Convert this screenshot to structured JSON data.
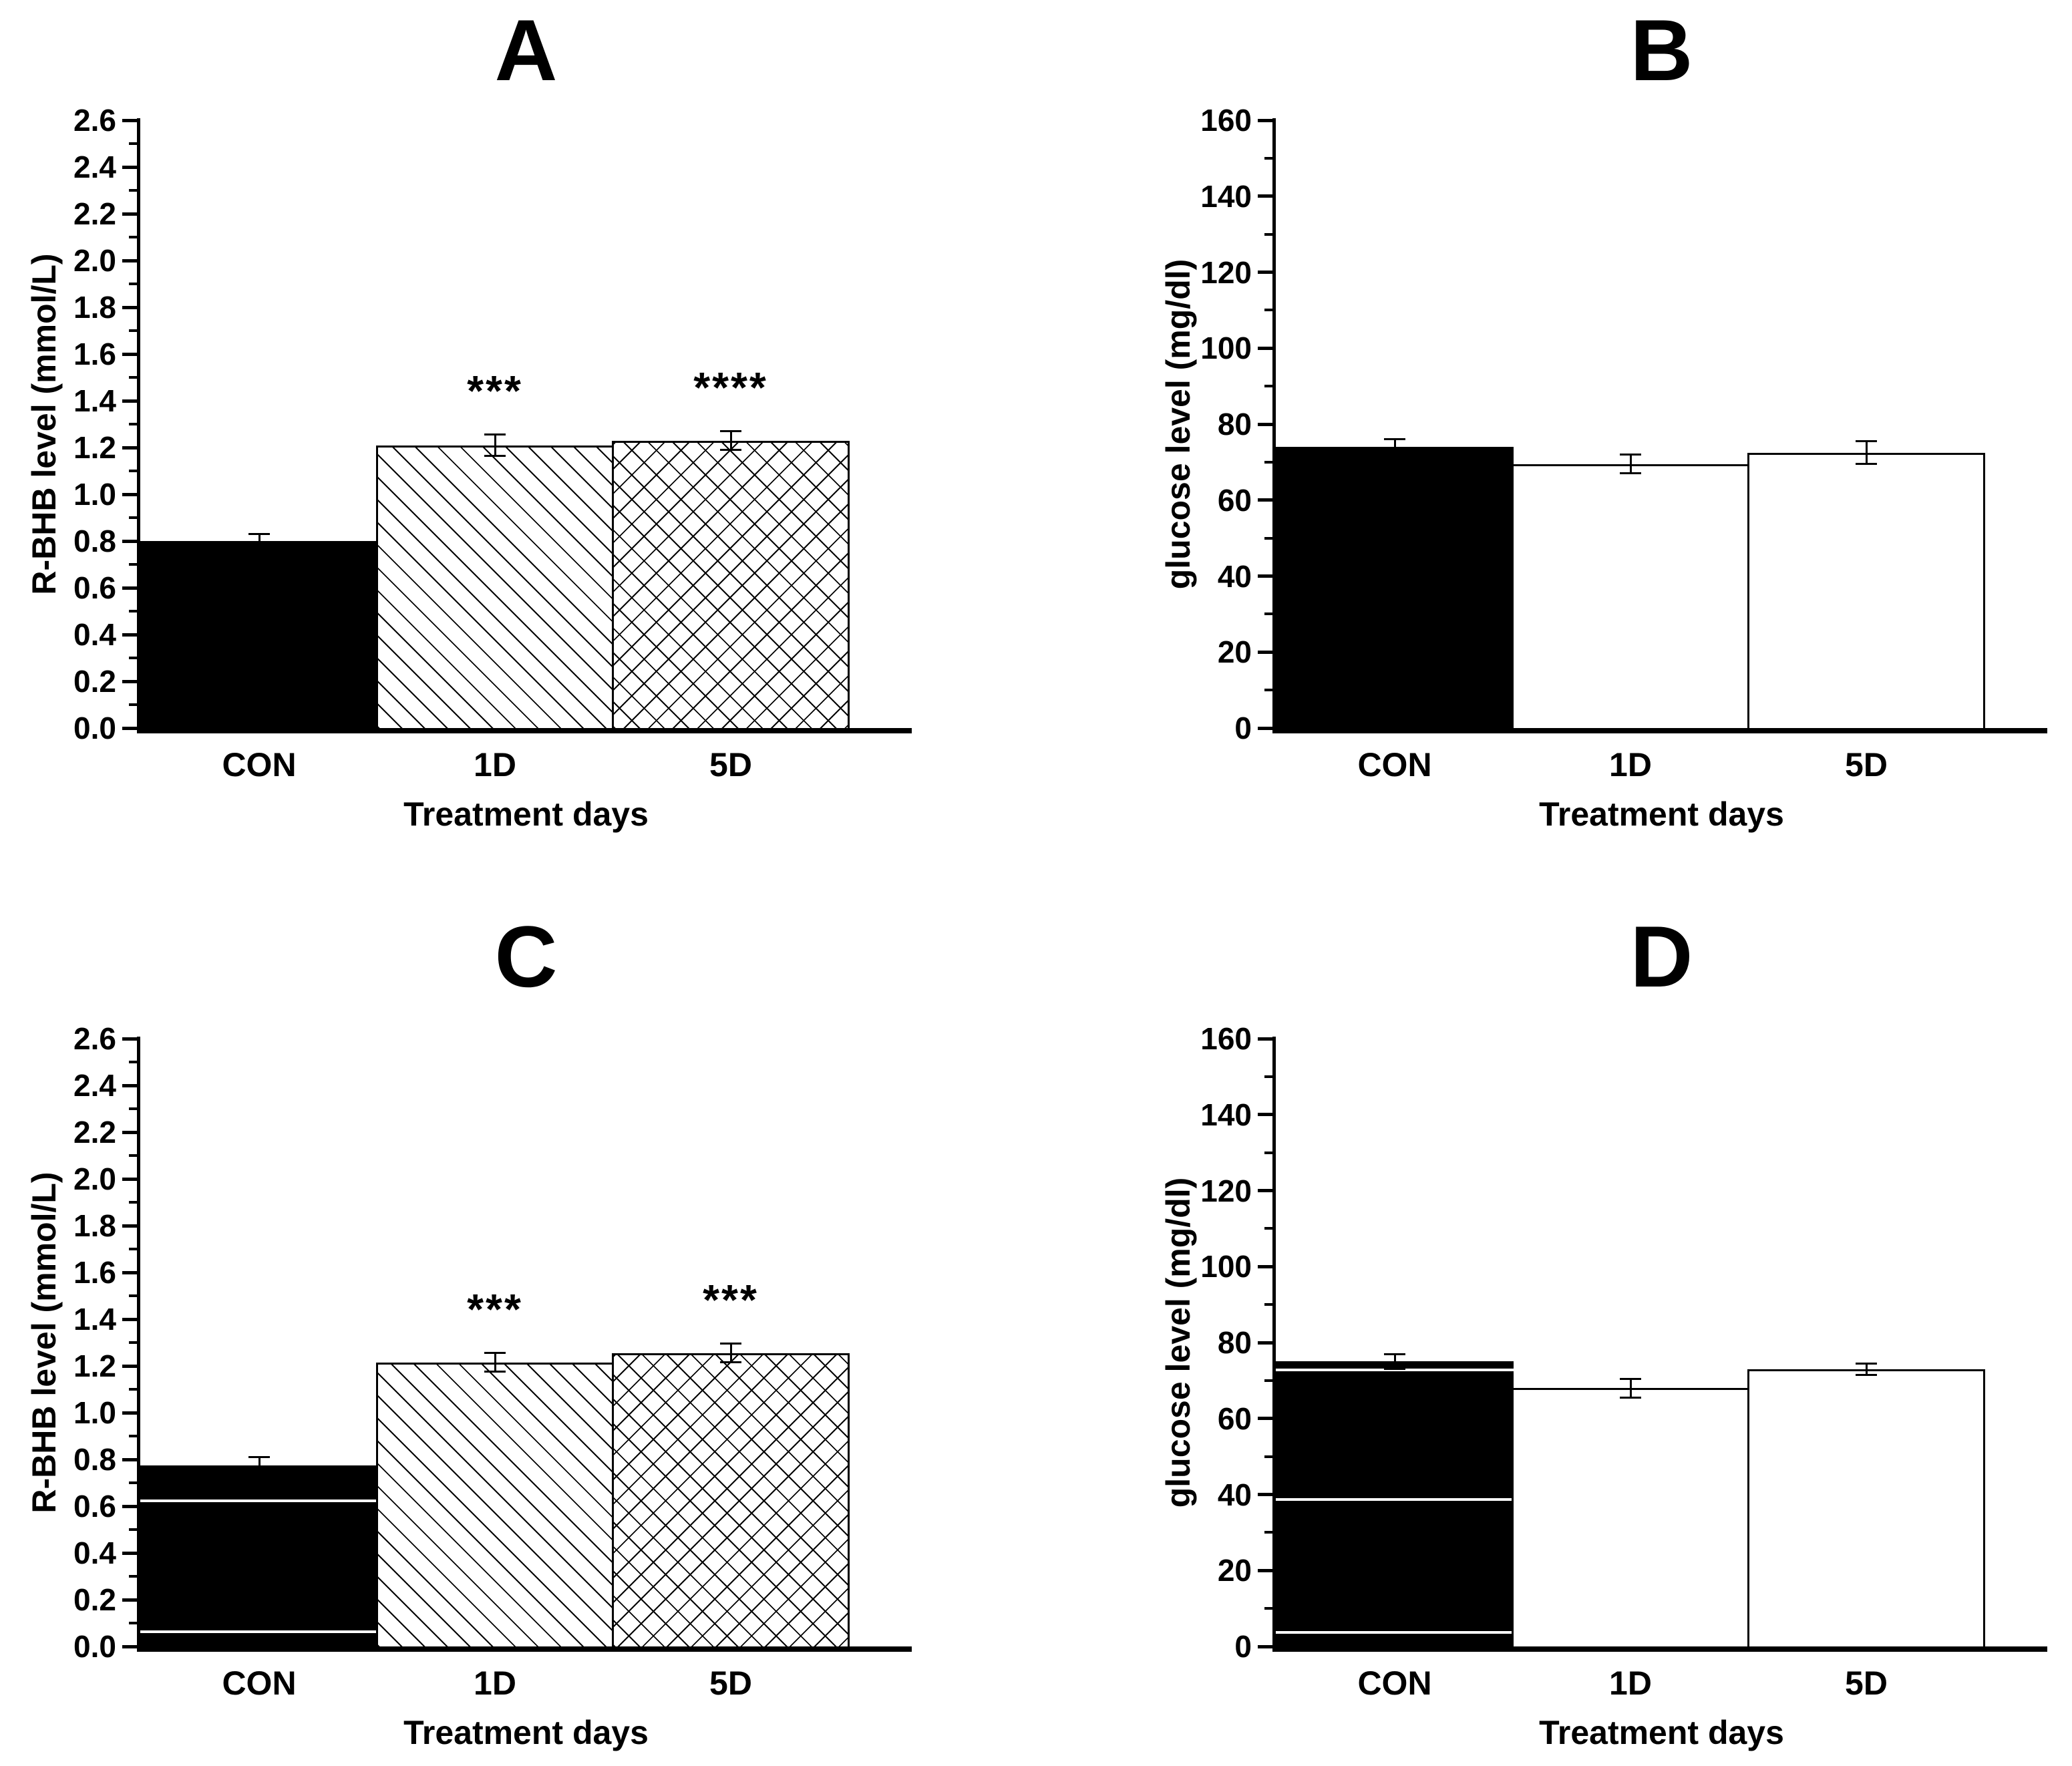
{
  "figure": {
    "background_color": "#ffffff",
    "ink_color": "#000000",
    "bar_fill_black": "#000000",
    "bar_fill_white": "#ffffff"
  },
  "chart_data": [
    {
      "type": "bar",
      "title": "A",
      "ylabel": "R-BHB level (mmol/L)",
      "xlabel": "Treatment days",
      "categories": [
        "CON",
        "1D",
        "5D"
      ],
      "values": [
        0.8,
        1.21,
        1.23
      ],
      "errors": [
        0.03,
        0.045,
        0.04
      ],
      "significance": [
        "",
        "***",
        "****"
      ],
      "bar_styles": [
        "solid-black",
        "diagonal-hatch",
        "cross-hatch"
      ],
      "white_line_artifacts": [
        [],
        [],
        []
      ],
      "ylim": [
        0,
        2.6
      ],
      "ytick_step": 0.2,
      "ytick_minor_step": 0.1,
      "ytick_labels": [
        "0.0",
        "0.2",
        "0.4",
        "0.6",
        "0.8",
        "1.0",
        "1.2",
        "1.4",
        "1.6",
        "1.8",
        "2.0",
        "2.2",
        "2.4",
        "2.6"
      ],
      "grid": false,
      "legend": null
    },
    {
      "type": "bar",
      "title": "B",
      "ylabel": "glucose level (mg/dl)",
      "xlabel": "Treatment days",
      "categories": [
        "CON",
        "1D",
        "5D"
      ],
      "values": [
        74,
        69.5,
        72.5
      ],
      "errors": [
        2,
        2.5,
        3
      ],
      "significance": [
        "",
        "",
        ""
      ],
      "bar_styles": [
        "solid-black",
        "plain-white",
        "plain-white"
      ],
      "white_line_artifacts": [
        [],
        [],
        []
      ],
      "ylim": [
        0,
        160
      ],
      "ytick_step": 20,
      "ytick_minor_step": 10,
      "ytick_labels": [
        "0",
        "20",
        "40",
        "60",
        "80",
        "100",
        "120",
        "140",
        "160"
      ],
      "grid": false,
      "legend": null
    },
    {
      "type": "bar",
      "title": "C",
      "ylabel": "R-BHB level (mmol/L)",
      "xlabel": "Treatment days",
      "categories": [
        "CON",
        "1D",
        "5D"
      ],
      "values": [
        0.775,
        1.215,
        1.255
      ],
      "errors": [
        0.035,
        0.04,
        0.04
      ],
      "significance": [
        "",
        "***",
        "***"
      ],
      "bar_styles": [
        "solid-black",
        "diagonal-hatch",
        "cross-hatch"
      ],
      "white_line_artifacts": [
        [
          0.63,
          0.07
        ],
        [],
        []
      ],
      "ylim": [
        0,
        2.6
      ],
      "ytick_step": 0.2,
      "ytick_minor_step": 0.1,
      "ytick_labels": [
        "0.0",
        "0.2",
        "0.4",
        "0.6",
        "0.8",
        "1.0",
        "1.2",
        "1.4",
        "1.6",
        "1.8",
        "2.0",
        "2.2",
        "2.4",
        "2.6"
      ],
      "grid": false,
      "legend": null
    },
    {
      "type": "bar",
      "title": "D",
      "ylabel": "glucose level (mg/dl)",
      "xlabel": "Treatment days",
      "categories": [
        "CON",
        "1D",
        "5D"
      ],
      "values": [
        75,
        68,
        73
      ],
      "errors": [
        2,
        2.5,
        1.5
      ],
      "significance": [
        "",
        "",
        ""
      ],
      "bar_styles": [
        "solid-black",
        "plain-white",
        "plain-white"
      ],
      "white_line_artifacts": [
        [
          73.2,
          39,
          4
        ],
        [],
        []
      ],
      "ylim": [
        0,
        160
      ],
      "ytick_step": 20,
      "ytick_minor_step": 10,
      "ytick_labels": [
        "0",
        "20",
        "40",
        "60",
        "80",
        "100",
        "120",
        "140",
        "160"
      ],
      "grid": false,
      "legend": null
    }
  ]
}
